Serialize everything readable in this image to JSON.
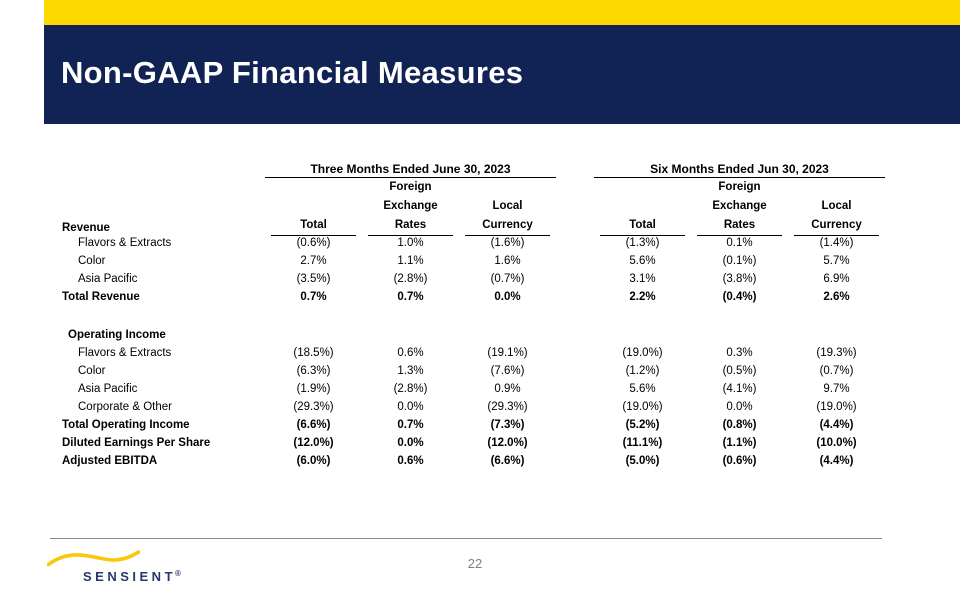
{
  "header": {
    "title": "Non-GAAP Financial Measures"
  },
  "colors": {
    "accent_yellow": "#FFDA00",
    "header_navy": "#112254",
    "logo_navy": "#27386B",
    "logo_wave_gold": "#F8C80C",
    "divider_gray": "#8C8C8C",
    "page_number_gray": "#7F7F7F"
  },
  "table": {
    "revenue_section_label": "Revenue",
    "groups": [
      {
        "title": "Three Months Ended June 30, 2023",
        "columns": [
          {
            "lines": [
              "",
              "",
              "Total"
            ]
          },
          {
            "lines": [
              "Foreign",
              "Exchange",
              "Rates"
            ]
          },
          {
            "lines": [
              "",
              "Local",
              "Currency"
            ]
          }
        ]
      },
      {
        "title": "Six Months Ended Jun 30, 2023",
        "columns": [
          {
            "lines": [
              "",
              "",
              "Total"
            ]
          },
          {
            "lines": [
              "Foreign",
              "Exchange",
              "Rates"
            ]
          },
          {
            "lines": [
              "",
              "Local",
              "Currency"
            ]
          }
        ]
      }
    ],
    "rows": [
      {
        "label": "Flavors & Extracts",
        "indent": 2,
        "bold": false,
        "three": [
          "(0.6%)",
          "1.0%",
          "(1.6%)"
        ],
        "six": [
          "(1.3%)",
          "0.1%",
          "(1.4%)"
        ]
      },
      {
        "label": "Color",
        "indent": 2,
        "bold": false,
        "three": [
          "2.7%",
          "1.1%",
          "1.6%"
        ],
        "six": [
          "5.6%",
          "(0.1%)",
          "5.7%"
        ]
      },
      {
        "label": "Asia Pacific",
        "indent": 2,
        "bold": false,
        "three": [
          "(3.5%)",
          "(2.8%)",
          "(0.7%)"
        ],
        "six": [
          "3.1%",
          "(3.8%)",
          "6.9%"
        ]
      },
      {
        "label": "Total Revenue",
        "indent": 0,
        "bold": true,
        "three": [
          "0.7%",
          "0.7%",
          "0.0%"
        ],
        "six": [
          "2.2%",
          "(0.4%)",
          "2.6%"
        ]
      },
      {
        "spacer": true
      },
      {
        "label": "Operating Income",
        "indent": 1,
        "bold": true,
        "three": [
          "",
          "",
          ""
        ],
        "six": [
          "",
          "",
          ""
        ]
      },
      {
        "label": "Flavors & Extracts",
        "indent": 2,
        "bold": false,
        "three": [
          "(18.5%)",
          "0.6%",
          "(19.1%)"
        ],
        "six": [
          "(19.0%)",
          "0.3%",
          "(19.3%)"
        ]
      },
      {
        "label": "Color",
        "indent": 2,
        "bold": false,
        "three": [
          "(6.3%)",
          "1.3%",
          "(7.6%)"
        ],
        "six": [
          "(1.2%)",
          "(0.5%)",
          "(0.7%)"
        ]
      },
      {
        "label": "Asia Pacific",
        "indent": 2,
        "bold": false,
        "three": [
          "(1.9%)",
          "(2.8%)",
          "0.9%"
        ],
        "six": [
          "5.6%",
          "(4.1%)",
          "9.7%"
        ]
      },
      {
        "label": "Corporate & Other",
        "indent": 2,
        "bold": false,
        "three": [
          "(29.3%)",
          "0.0%",
          "(29.3%)"
        ],
        "six": [
          "(19.0%)",
          "0.0%",
          "(19.0%)"
        ]
      },
      {
        "label": "Total Operating Income",
        "indent": 0,
        "bold": true,
        "three": [
          "(6.6%)",
          "0.7%",
          "(7.3%)"
        ],
        "six": [
          "(5.2%)",
          "(0.8%)",
          "(4.4%)"
        ]
      },
      {
        "label": "Diluted Earnings Per Share",
        "indent": 0,
        "bold": true,
        "three": [
          "(12.0%)",
          "0.0%",
          "(12.0%)"
        ],
        "six": [
          "(11.1%)",
          "(1.1%)",
          "(10.0%)"
        ]
      },
      {
        "label": "Adjusted EBITDA",
        "indent": 0,
        "bold": true,
        "three": [
          "(6.0%)",
          "0.6%",
          "(6.6%)"
        ],
        "six": [
          "(5.0%)",
          "(0.6%)",
          "(4.4%)"
        ]
      }
    ]
  },
  "footer": {
    "logo_text": "SENSIENT",
    "logo_reg": "®",
    "logo_wave_icon": "wave-swoosh",
    "page_number": "22"
  }
}
